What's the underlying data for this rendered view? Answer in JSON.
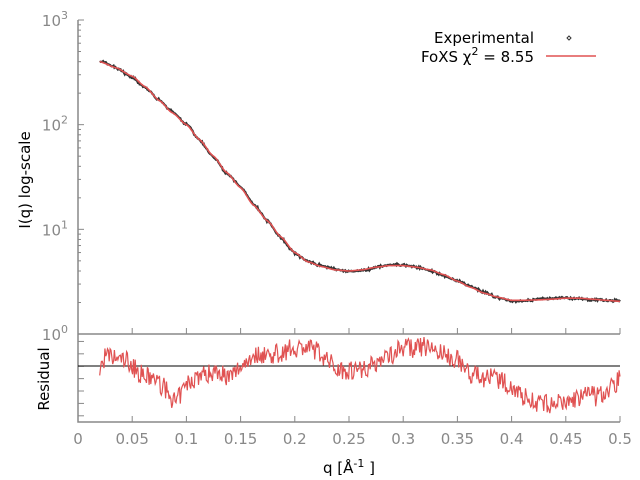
{
  "chart_data": [
    {
      "type": "line",
      "panel": "main",
      "ylabel": "I(q) log-scale",
      "yscale": "log",
      "ylim": [
        1,
        1000
      ],
      "xlim": [
        0,
        0.5
      ],
      "yticks": [
        {
          "base": "10",
          "exp": "0",
          "value": 1
        },
        {
          "base": "10",
          "exp": "1",
          "value": 10
        },
        {
          "base": "10",
          "exp": "2",
          "value": 100
        },
        {
          "base": "10",
          "exp": "3",
          "value": 1000
        }
      ],
      "legend_position": "top-right",
      "series": [
        {
          "name": "Experimental",
          "style": "points",
          "color": "#333333"
        },
        {
          "name": "FoXS χ² = 8.55",
          "legend_main": "FoXS χ",
          "legend_sup": "2",
          "legend_tail": " = 8.55",
          "style": "line",
          "color": "#e05252"
        }
      ],
      "x": [
        0.02,
        0.035,
        0.05,
        0.062,
        0.075,
        0.087,
        0.1,
        0.112,
        0.125,
        0.137,
        0.15,
        0.162,
        0.175,
        0.187,
        0.2,
        0.212,
        0.225,
        0.237,
        0.25,
        0.262,
        0.275,
        0.287,
        0.3,
        0.312,
        0.325,
        0.337,
        0.35,
        0.362,
        0.375,
        0.387,
        0.4,
        0.412,
        0.425,
        0.437,
        0.45,
        0.462,
        0.475,
        0.487,
        0.5
      ],
      "values": [
        400,
        350,
        290,
        230,
        170,
        130,
        100,
        72,
        50,
        35,
        25,
        17,
        12,
        8.5,
        6.0,
        4.9,
        4.4,
        4.1,
        4.0,
        4.1,
        4.35,
        4.5,
        4.5,
        4.35,
        4.1,
        3.7,
        3.2,
        2.8,
        2.45,
        2.25,
        2.1,
        2.1,
        2.12,
        2.15,
        2.2,
        2.2,
        2.15,
        2.1,
        2.05
      ]
    },
    {
      "type": "line",
      "panel": "residual",
      "ylabel": "Residual",
      "xlabel_main": "q [Å",
      "xlabel_sup": "-1",
      "xlabel_tail": "]",
      "xlim": [
        0,
        0.5
      ],
      "ylim": [
        -4.5,
        2.6
      ],
      "xticks": [
        "0",
        "0.05",
        "0.1",
        "0.15",
        "0.2",
        "0.25",
        "0.3",
        "0.35",
        "0.4",
        "0.45",
        "0.5"
      ],
      "color": "#e05252",
      "x": [
        0.02,
        0.025,
        0.035,
        0.045,
        0.05,
        0.06,
        0.07,
        0.08,
        0.09,
        0.1,
        0.11,
        0.12,
        0.13,
        0.14,
        0.15,
        0.16,
        0.17,
        0.18,
        0.19,
        0.2,
        0.21,
        0.22,
        0.23,
        0.24,
        0.25,
        0.26,
        0.27,
        0.28,
        0.29,
        0.3,
        0.31,
        0.32,
        0.33,
        0.34,
        0.35,
        0.36,
        0.37,
        0.38,
        0.39,
        0.4,
        0.41,
        0.42,
        0.43,
        0.44,
        0.45,
        0.46,
        0.47,
        0.48,
        0.49,
        0.5
      ],
      "values": [
        -0.4,
        0.8,
        0.6,
        0.5,
        0.0,
        -0.8,
        -1.0,
        -1.8,
        -3.0,
        -1.5,
        -0.8,
        -0.6,
        -0.3,
        -1.0,
        0.0,
        0.8,
        1.0,
        0.9,
        1.2,
        1.5,
        1.5,
        1.3,
        0.5,
        -0.2,
        -0.3,
        -0.2,
        0.0,
        0.6,
        1.0,
        1.6,
        1.4,
        1.6,
        1.3,
        0.8,
        0.6,
        -0.5,
        -0.9,
        -0.9,
        -1.2,
        -1.6,
        -2.4,
        -2.8,
        -3.1,
        -3.0,
        -3.0,
        -2.6,
        -2.3,
        -2.5,
        -1.8,
        -1.0
      ]
    }
  ]
}
